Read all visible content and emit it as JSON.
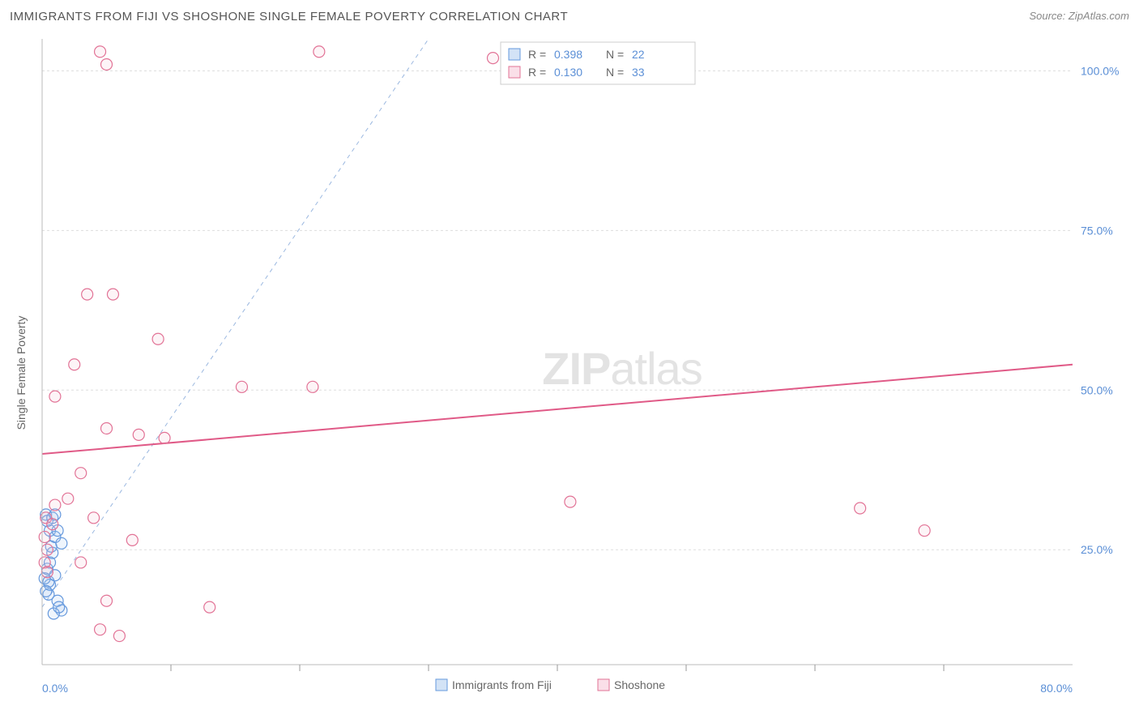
{
  "title": "IMMIGRANTS FROM FIJI VS SHOSHONE SINGLE FEMALE POVERTY CORRELATION CHART",
  "source_label": "Source: ",
  "source_value": "ZipAtlas.com",
  "ylabel": "Single Female Poverty",
  "chart": {
    "type": "scatter",
    "xlim": [
      0,
      80
    ],
    "ylim": [
      7,
      105
    ],
    "xtick_major": [
      0,
      80
    ],
    "xtick_minor": [
      10,
      20,
      30,
      40,
      50,
      60,
      70
    ],
    "ytick_major": [
      25,
      50,
      75,
      100
    ],
    "xtick_labels": [
      "0.0%",
      "80.0%"
    ],
    "ytick_labels": [
      "25.0%",
      "50.0%",
      "75.0%",
      "100.0%"
    ],
    "background": "#ffffff",
    "grid_color": "#dddddd",
    "border_color": "#bbbbbb",
    "axis_label_color": "#5b8fd6",
    "marker_radius": 7,
    "marker_stroke_width": 1.2,
    "marker_fill_opacity": 0.18,
    "series": [
      {
        "name": "Immigrants from Fiji",
        "color_stroke": "#6699dd",
        "color_fill": "#a8c8ee",
        "R": "0.398",
        "N": "22",
        "regression": {
          "x1": 0,
          "y1": 16,
          "x2": 30,
          "y2": 105,
          "dash": "5,5",
          "width": 1,
          "color": "#9bb8e0"
        },
        "points": [
          [
            0.3,
            30.5
          ],
          [
            0.4,
            29.5
          ],
          [
            0.6,
            28.0
          ],
          [
            0.8,
            30.0
          ],
          [
            1.0,
            30.5
          ],
          [
            0.5,
            18.0
          ],
          [
            0.6,
            19.5
          ],
          [
            0.2,
            20.5
          ],
          [
            0.4,
            22.0
          ],
          [
            0.6,
            23.0
          ],
          [
            0.8,
            24.5
          ],
          [
            0.5,
            20.0
          ],
          [
            0.3,
            18.5
          ],
          [
            0.7,
            25.5
          ],
          [
            1.0,
            27.0
          ],
          [
            1.2,
            28.0
          ],
          [
            1.5,
            26.0
          ],
          [
            1.0,
            21.0
          ],
          [
            1.2,
            17.0
          ],
          [
            1.5,
            15.5
          ],
          [
            0.9,
            15.0
          ],
          [
            1.3,
            16.0
          ]
        ]
      },
      {
        "name": "Shoshone",
        "color_stroke": "#e27396",
        "color_fill": "#f6c0d2",
        "R": "0.130",
        "N": "33",
        "regression": {
          "x1": 0,
          "y1": 40,
          "x2": 80,
          "y2": 54,
          "dash": "none",
          "width": 2,
          "color": "#e05a87"
        },
        "points": [
          [
            4.5,
            103.0
          ],
          [
            5.0,
            101.0
          ],
          [
            21.5,
            103.0
          ],
          [
            35.0,
            102.0
          ],
          [
            3.5,
            65.0
          ],
          [
            5.5,
            65.0
          ],
          [
            9.0,
            58.0
          ],
          [
            2.5,
            54.0
          ],
          [
            1.0,
            49.0
          ],
          [
            15.5,
            50.5
          ],
          [
            21.0,
            50.5
          ],
          [
            5.0,
            44.0
          ],
          [
            7.5,
            43.0
          ],
          [
            9.5,
            42.5
          ],
          [
            3.0,
            37.0
          ],
          [
            0.3,
            30.0
          ],
          [
            0.8,
            29.0
          ],
          [
            4.0,
            30.0
          ],
          [
            7.0,
            26.5
          ],
          [
            0.2,
            27.0
          ],
          [
            0.2,
            23.0
          ],
          [
            0.4,
            21.5
          ],
          [
            3.0,
            23.0
          ],
          [
            5.0,
            17.0
          ],
          [
            4.5,
            12.5
          ],
          [
            6.0,
            11.5
          ],
          [
            13.0,
            16.0
          ],
          [
            41.0,
            32.5
          ],
          [
            63.5,
            31.5
          ],
          [
            68.5,
            28.0
          ],
          [
            0.4,
            25.0
          ],
          [
            1.0,
            32.0
          ],
          [
            2.0,
            33.0
          ]
        ]
      }
    ],
    "legend": {
      "R_label": "R =",
      "N_label": "N =",
      "box_stroke": "#cccccc",
      "value_color": "#5b8fd6",
      "label_color": "#666666"
    }
  },
  "watermark": {
    "part1": "ZIP",
    "part2": "atlas"
  },
  "bottom_legend": {
    "items": [
      {
        "label": "Immigrants from Fiji",
        "stroke": "#6699dd",
        "fill": "#a8c8ee"
      },
      {
        "label": "Shoshone",
        "stroke": "#e27396",
        "fill": "#f6c0d2"
      }
    ]
  }
}
